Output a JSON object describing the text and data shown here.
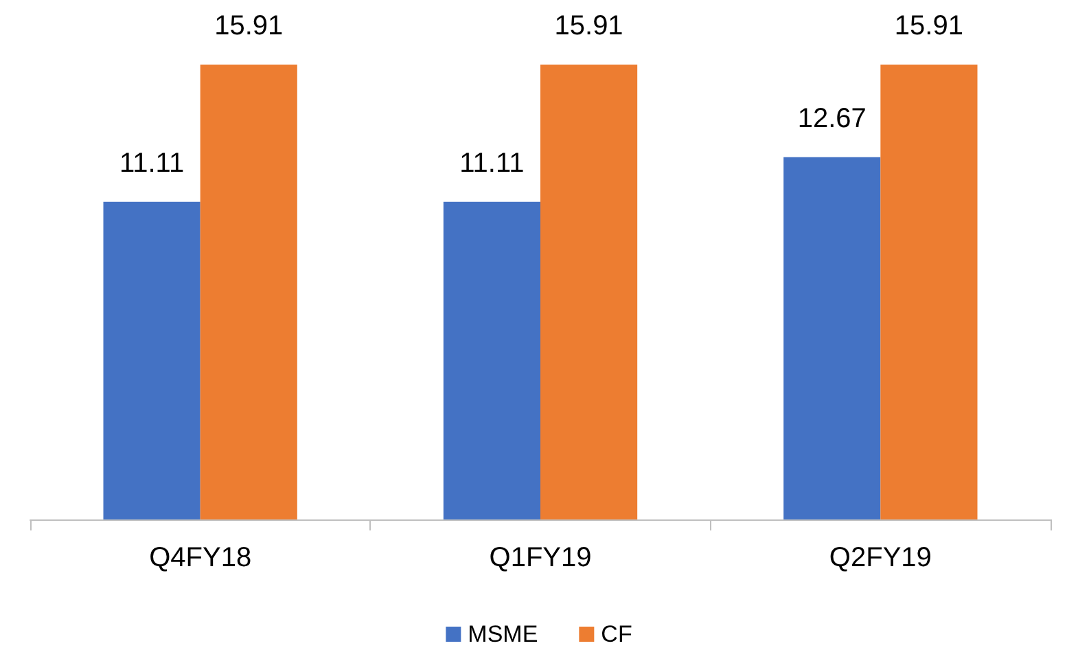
{
  "chart_data": {
    "type": "bar",
    "categories": [
      "Q4FY18",
      "Q1FY19",
      "Q2FY19"
    ],
    "series": [
      {
        "name": "MSME",
        "color": "#4472c4",
        "values": [
          11.11,
          11.11,
          12.67
        ]
      },
      {
        "name": "CF",
        "color": "#ed7d31",
        "values": [
          15.91,
          15.91,
          15.91
        ]
      }
    ],
    "data_labels": true,
    "legend": "bottom",
    "grid": false
  }
}
